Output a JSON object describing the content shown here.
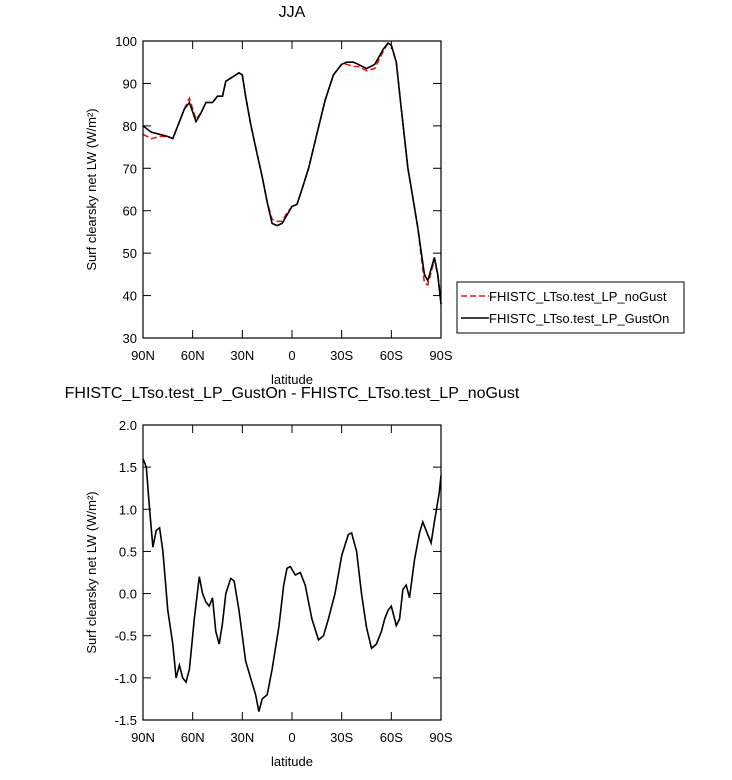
{
  "chart_data": [
    {
      "type": "line",
      "title": "JJA",
      "x_label": "latitude",
      "y_label": "Surf clearsky net LW (W/m²)",
      "x": [
        90,
        85,
        80,
        75,
        72,
        65,
        62,
        58,
        55,
        52,
        48,
        45,
        42,
        40,
        36,
        32,
        30,
        28,
        25,
        22,
        18,
        15,
        12,
        9,
        6,
        3,
        0,
        -3,
        -6,
        -10,
        -15,
        -20,
        -25,
        -30,
        -33,
        -37,
        -40,
        -45,
        -50,
        -55,
        -58,
        -60,
        -63,
        -66,
        -70,
        -73,
        -76,
        -80,
        -82,
        -86,
        -88,
        -90
      ],
      "series": [
        {
          "name": "FHISTC_LTso.test_LP_noGust",
          "color": "#e41a1c",
          "line_style": "dashed",
          "values": [
            78,
            77,
            77.5,
            77.5,
            77,
            84,
            86.5,
            81.5,
            83,
            85.5,
            85.5,
            87,
            87,
            90.5,
            91.5,
            92.5,
            92,
            87,
            80.5,
            75,
            68,
            62,
            58,
            57.5,
            57.5,
            59.5,
            61,
            61.5,
            65,
            70,
            78,
            86,
            92,
            94.5,
            94.5,
            94,
            94,
            93,
            93.5,
            97.5,
            99.5,
            99,
            95,
            84,
            70,
            63,
            56,
            43,
            42.5,
            48.5,
            45,
            39
          ]
        },
        {
          "name": "FHISTC_LTso.test_LP_GustOn",
          "color": "#000000",
          "line_style": "solid",
          "values": [
            80,
            78.5,
            78,
            77.5,
            77,
            84,
            85.5,
            81,
            83,
            85.5,
            85.5,
            87,
            87,
            90.5,
            91.5,
            92.5,
            92,
            87,
            80.5,
            75,
            68,
            62,
            57,
            56.5,
            57,
            59,
            61,
            61.5,
            65,
            70,
            78,
            86,
            92,
            94.5,
            95,
            95,
            94.5,
            93.5,
            94.5,
            98,
            99.5,
            99,
            95,
            84,
            70,
            63,
            56,
            45,
            43.5,
            49,
            45,
            38
          ]
        }
      ],
      "xlim": [
        90,
        -90
      ],
      "xticks": [
        {
          "value": 90,
          "label": "90N"
        },
        {
          "value": 60,
          "label": "60N"
        },
        {
          "value": 30,
          "label": "30N"
        },
        0,
        {
          "value": -30,
          "label": "30S"
        },
        {
          "value": -60,
          "label": "60S"
        },
        {
          "value": -90,
          "label": "90S"
        }
      ],
      "ylim": [
        30,
        100
      ],
      "yticks": [
        30,
        40,
        50,
        60,
        70,
        80,
        90,
        100
      ],
      "legend": "right"
    },
    {
      "type": "line",
      "title": "FHISTC_LTso.test_LP_GustOn - FHISTC_LTso.test_LP_noGust",
      "x_label": "latitude",
      "y_label": "Surf clearsky net LW (W/m²)",
      "x": [
        90,
        88,
        86,
        84,
        82,
        80,
        78,
        75,
        72,
        70,
        68,
        66,
        64,
        62,
        59,
        56,
        54,
        52,
        50,
        48,
        46,
        44,
        42,
        40,
        37,
        35,
        32,
        28,
        25,
        22,
        20,
        18,
        15,
        12,
        8,
        5,
        3,
        1,
        -2,
        -5,
        -8,
        -12,
        -16,
        -19,
        -22,
        -26,
        -30,
        -34,
        -36,
        -39,
        -42,
        -45,
        -48,
        -51,
        -54,
        -56,
        -58,
        -60,
        -63,
        -65,
        -67,
        -69,
        -71,
        -74,
        -77,
        -79,
        -81,
        -84,
        -86,
        -89,
        -90
      ],
      "series": [
        {
          "color": "#000000",
          "line_style": "solid",
          "values": [
            1.6,
            1.5,
            1.0,
            0.55,
            0.75,
            0.78,
            0.5,
            -0.2,
            -0.6,
            -1.0,
            -0.85,
            -1.0,
            -1.05,
            -0.9,
            -0.3,
            0.2,
            0.0,
            -0.1,
            -0.15,
            -0.05,
            -0.45,
            -0.6,
            -0.35,
            0.0,
            0.18,
            0.15,
            -0.2,
            -0.8,
            -1.0,
            -1.2,
            -1.4,
            -1.25,
            -1.2,
            -0.9,
            -0.4,
            0.1,
            0.3,
            0.32,
            0.22,
            0.25,
            0.1,
            -0.3,
            -0.55,
            -0.5,
            -0.3,
            0.0,
            0.45,
            0.7,
            0.72,
            0.5,
            0.0,
            -0.4,
            -0.65,
            -0.6,
            -0.45,
            -0.3,
            -0.2,
            -0.15,
            -0.38,
            -0.3,
            0.05,
            0.1,
            -0.05,
            0.4,
            0.72,
            0.85,
            0.75,
            0.6,
            0.85,
            1.2,
            1.4
          ]
        }
      ],
      "xlim": [
        90,
        -90
      ],
      "xticks": [
        {
          "value": 90,
          "label": "90N"
        },
        {
          "value": 60,
          "label": "60N"
        },
        {
          "value": 30,
          "label": "30N"
        },
        0,
        {
          "value": -30,
          "label": "30S"
        },
        {
          "value": -60,
          "label": "60S"
        },
        {
          "value": -90,
          "label": "90S"
        }
      ],
      "ylim": [
        -1.5,
        2.0
      ],
      "yticks": [
        -1.5,
        -1.0,
        -0.5,
        0.0,
        0.5,
        1.0,
        1.5,
        2.0
      ]
    }
  ]
}
